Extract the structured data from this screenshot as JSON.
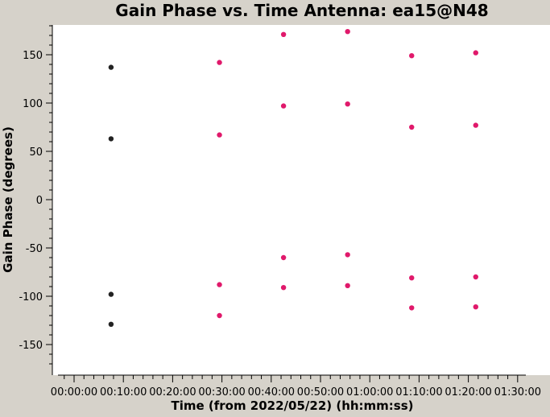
{
  "chart_data": {
    "type": "scatter",
    "title": "Gain Phase vs. Time Antenna: ea15@N48",
    "xlabel": "Time (from 2022/05/22) (hh:mm:ss)",
    "ylabel": "Gain Phase (degrees)",
    "x_unit": "minutes",
    "xlim": [
      -5,
      135
    ],
    "ylim": [
      -180,
      180
    ],
    "x_ticks": [
      {
        "value": 0,
        "label": "00:00:00"
      },
      {
        "value": 10,
        "label": "00:10:00"
      },
      {
        "value": 20,
        "label": "00:20:00"
      },
      {
        "value": 30,
        "label": "00:30:00"
      },
      {
        "value": 40,
        "label": "00:40:00"
      },
      {
        "value": 50,
        "label": "00:50:00"
      },
      {
        "value": 60,
        "label": "01:00:00"
      },
      {
        "value": 70,
        "label": "01:10:00"
      },
      {
        "value": 80,
        "label": "01:20:00"
      },
      {
        "value": 90,
        "label": "01:30:00"
      }
    ],
    "y_ticks": [
      {
        "value": 150,
        "label": "150"
      },
      {
        "value": 100,
        "label": "100"
      },
      {
        "value": 50,
        "label": "50"
      },
      {
        "value": 0,
        "label": "0"
      },
      {
        "value": -50,
        "label": "-50"
      },
      {
        "value": -100,
        "label": "-100"
      },
      {
        "value": -150,
        "label": "-150"
      }
    ],
    "grid": false,
    "legend": "none",
    "series": [
      {
        "color": "#222222",
        "points": [
          {
            "x": 7.5,
            "y": 137
          },
          {
            "x": 7.5,
            "y": 63
          },
          {
            "x": 7.5,
            "y": -98
          },
          {
            "x": 7.5,
            "y": -129
          }
        ]
      },
      {
        "color": "#e0196b",
        "points": [
          {
            "x": 29.5,
            "y": 142
          },
          {
            "x": 29.5,
            "y": 67
          },
          {
            "x": 29.5,
            "y": -88
          },
          {
            "x": 29.5,
            "y": -120
          },
          {
            "x": 42.5,
            "y": 171
          },
          {
            "x": 42.5,
            "y": 97
          },
          {
            "x": 42.5,
            "y": -60
          },
          {
            "x": 42.5,
            "y": -91
          },
          {
            "x": 55.5,
            "y": 174
          },
          {
            "x": 55.5,
            "y": 99
          },
          {
            "x": 55.5,
            "y": -57
          },
          {
            "x": 55.5,
            "y": -89
          },
          {
            "x": 68.5,
            "y": 149
          },
          {
            "x": 68.5,
            "y": 75
          },
          {
            "x": 68.5,
            "y": -81
          },
          {
            "x": 68.5,
            "y": -112
          },
          {
            "x": 81.5,
            "y": 152
          },
          {
            "x": 81.5,
            "y": 77
          },
          {
            "x": 81.5,
            "y": -80
          },
          {
            "x": 81.5,
            "y": -111
          }
        ]
      }
    ]
  }
}
